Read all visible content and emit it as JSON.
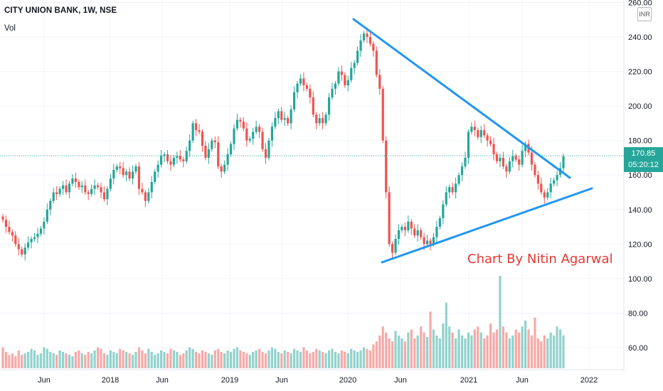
{
  "header": {
    "symbol_line": "CITY UNION BANK, 1W, NSE",
    "volume_label": "Vol"
  },
  "currency_badge": "INR",
  "last_price": {
    "value": "170.85",
    "countdown": "05:20:12"
  },
  "watermark": "Chart By Nitin Agarwal",
  "colors": {
    "up": "#26a69a",
    "down": "#ef5350",
    "trendline": "#2196f3",
    "price_badge": "#26a69a",
    "watermark_text": "#e53935"
  },
  "chart_data": {
    "type": "candlestick",
    "title": "CITY UNION BANK, 1W, NSE",
    "x_ticks": [
      "Jun",
      "2018",
      "Jun",
      "2019",
      "Jun",
      "2020",
      "Jun",
      "2021",
      "Jun",
      "2022"
    ],
    "y_ticks": [
      "60.00",
      "80.00",
      "100.00",
      "120.00",
      "140.00",
      "160.00",
      "180.00",
      "200.00",
      "220.00",
      "240.00",
      "260.00"
    ],
    "ylim": [
      49,
      264
    ],
    "grid": true,
    "last_value": 170.85,
    "trendlines": [
      {
        "name": "upper",
        "from": [
          "2020-01",
          249
        ],
        "to": [
          "2021-12",
          157
        ]
      },
      {
        "name": "lower",
        "from": [
          "2020-05",
          109
        ],
        "to": [
          "2022-01",
          152
        ]
      }
    ],
    "ohlc_closes": [
      134,
      130,
      127,
      125,
      120,
      117,
      114,
      118,
      121,
      123,
      124,
      126,
      129,
      133,
      140,
      145,
      150,
      149,
      152,
      154,
      150,
      155,
      158,
      156,
      153,
      154,
      150,
      149,
      152,
      154,
      153,
      150,
      146,
      152,
      158,
      163,
      165,
      164,
      160,
      162,
      158,
      162,
      165,
      152,
      150,
      145,
      150,
      156,
      162,
      166,
      171,
      172,
      168,
      166,
      170,
      171,
      169,
      168,
      174,
      180,
      190,
      186,
      185,
      177,
      170,
      175,
      180,
      179,
      165,
      162,
      166,
      172,
      178,
      187,
      192,
      191,
      187,
      180,
      181,
      185,
      188,
      185,
      175,
      170,
      180,
      188,
      193,
      197,
      192,
      193,
      190,
      198,
      208,
      213,
      216,
      212,
      210,
      205,
      195,
      190,
      193,
      190,
      195,
      205,
      210,
      213,
      220,
      218,
      212,
      215,
      222,
      225,
      232,
      238,
      242,
      240,
      236,
      232,
      218,
      210,
      180,
      150,
      120,
      115,
      123,
      128,
      130,
      128,
      133,
      129,
      125,
      128,
      124,
      120,
      122,
      120,
      124,
      130,
      135,
      143,
      150,
      153,
      150,
      155,
      160,
      165,
      170,
      185,
      188,
      186,
      182,
      186,
      183,
      180,
      178,
      172,
      168,
      170,
      165,
      162,
      168,
      171,
      169,
      166,
      174,
      178,
      173,
      166,
      160,
      155,
      150,
      147,
      150,
      155,
      157,
      160,
      164,
      170.85
    ],
    "volume": [
      14,
      11,
      9,
      10,
      8,
      12,
      9,
      10,
      11,
      13,
      12,
      9,
      10,
      14,
      13,
      11,
      10,
      9,
      12,
      11,
      10,
      9,
      8,
      11,
      12,
      10,
      9,
      11,
      10,
      12,
      14,
      13,
      10,
      9,
      12,
      11,
      10,
      13,
      12,
      11,
      10,
      9,
      11,
      14,
      12,
      10,
      13,
      11,
      9,
      10,
      12,
      11,
      10,
      13,
      12,
      11,
      9,
      10,
      12,
      14,
      13,
      11,
      10,
      12,
      11,
      10,
      9,
      12,
      13,
      11,
      10,
      12,
      11,
      13,
      14,
      12,
      11,
      10,
      9,
      11,
      12,
      13,
      11,
      10,
      12,
      14,
      13,
      11,
      10,
      12,
      11,
      10,
      13,
      12,
      11,
      14,
      12,
      10,
      11,
      13,
      12,
      11,
      10,
      12,
      13,
      11,
      10,
      12,
      11,
      10,
      13,
      12,
      11,
      12,
      14,
      13,
      12,
      16,
      18,
      22,
      28,
      24,
      20,
      18,
      25,
      22,
      20,
      18,
      24,
      26,
      20,
      22,
      28,
      24,
      21,
      38,
      26,
      22,
      20,
      30,
      44,
      28,
      24,
      20,
      26,
      22,
      20,
      24,
      22,
      26,
      28,
      24,
      20,
      22,
      30,
      24,
      26,
      62,
      28,
      24,
      20,
      22,
      26,
      24,
      28,
      32,
      26,
      22,
      34,
      20,
      18,
      22,
      20,
      24,
      22,
      28,
      26,
      22
    ]
  }
}
